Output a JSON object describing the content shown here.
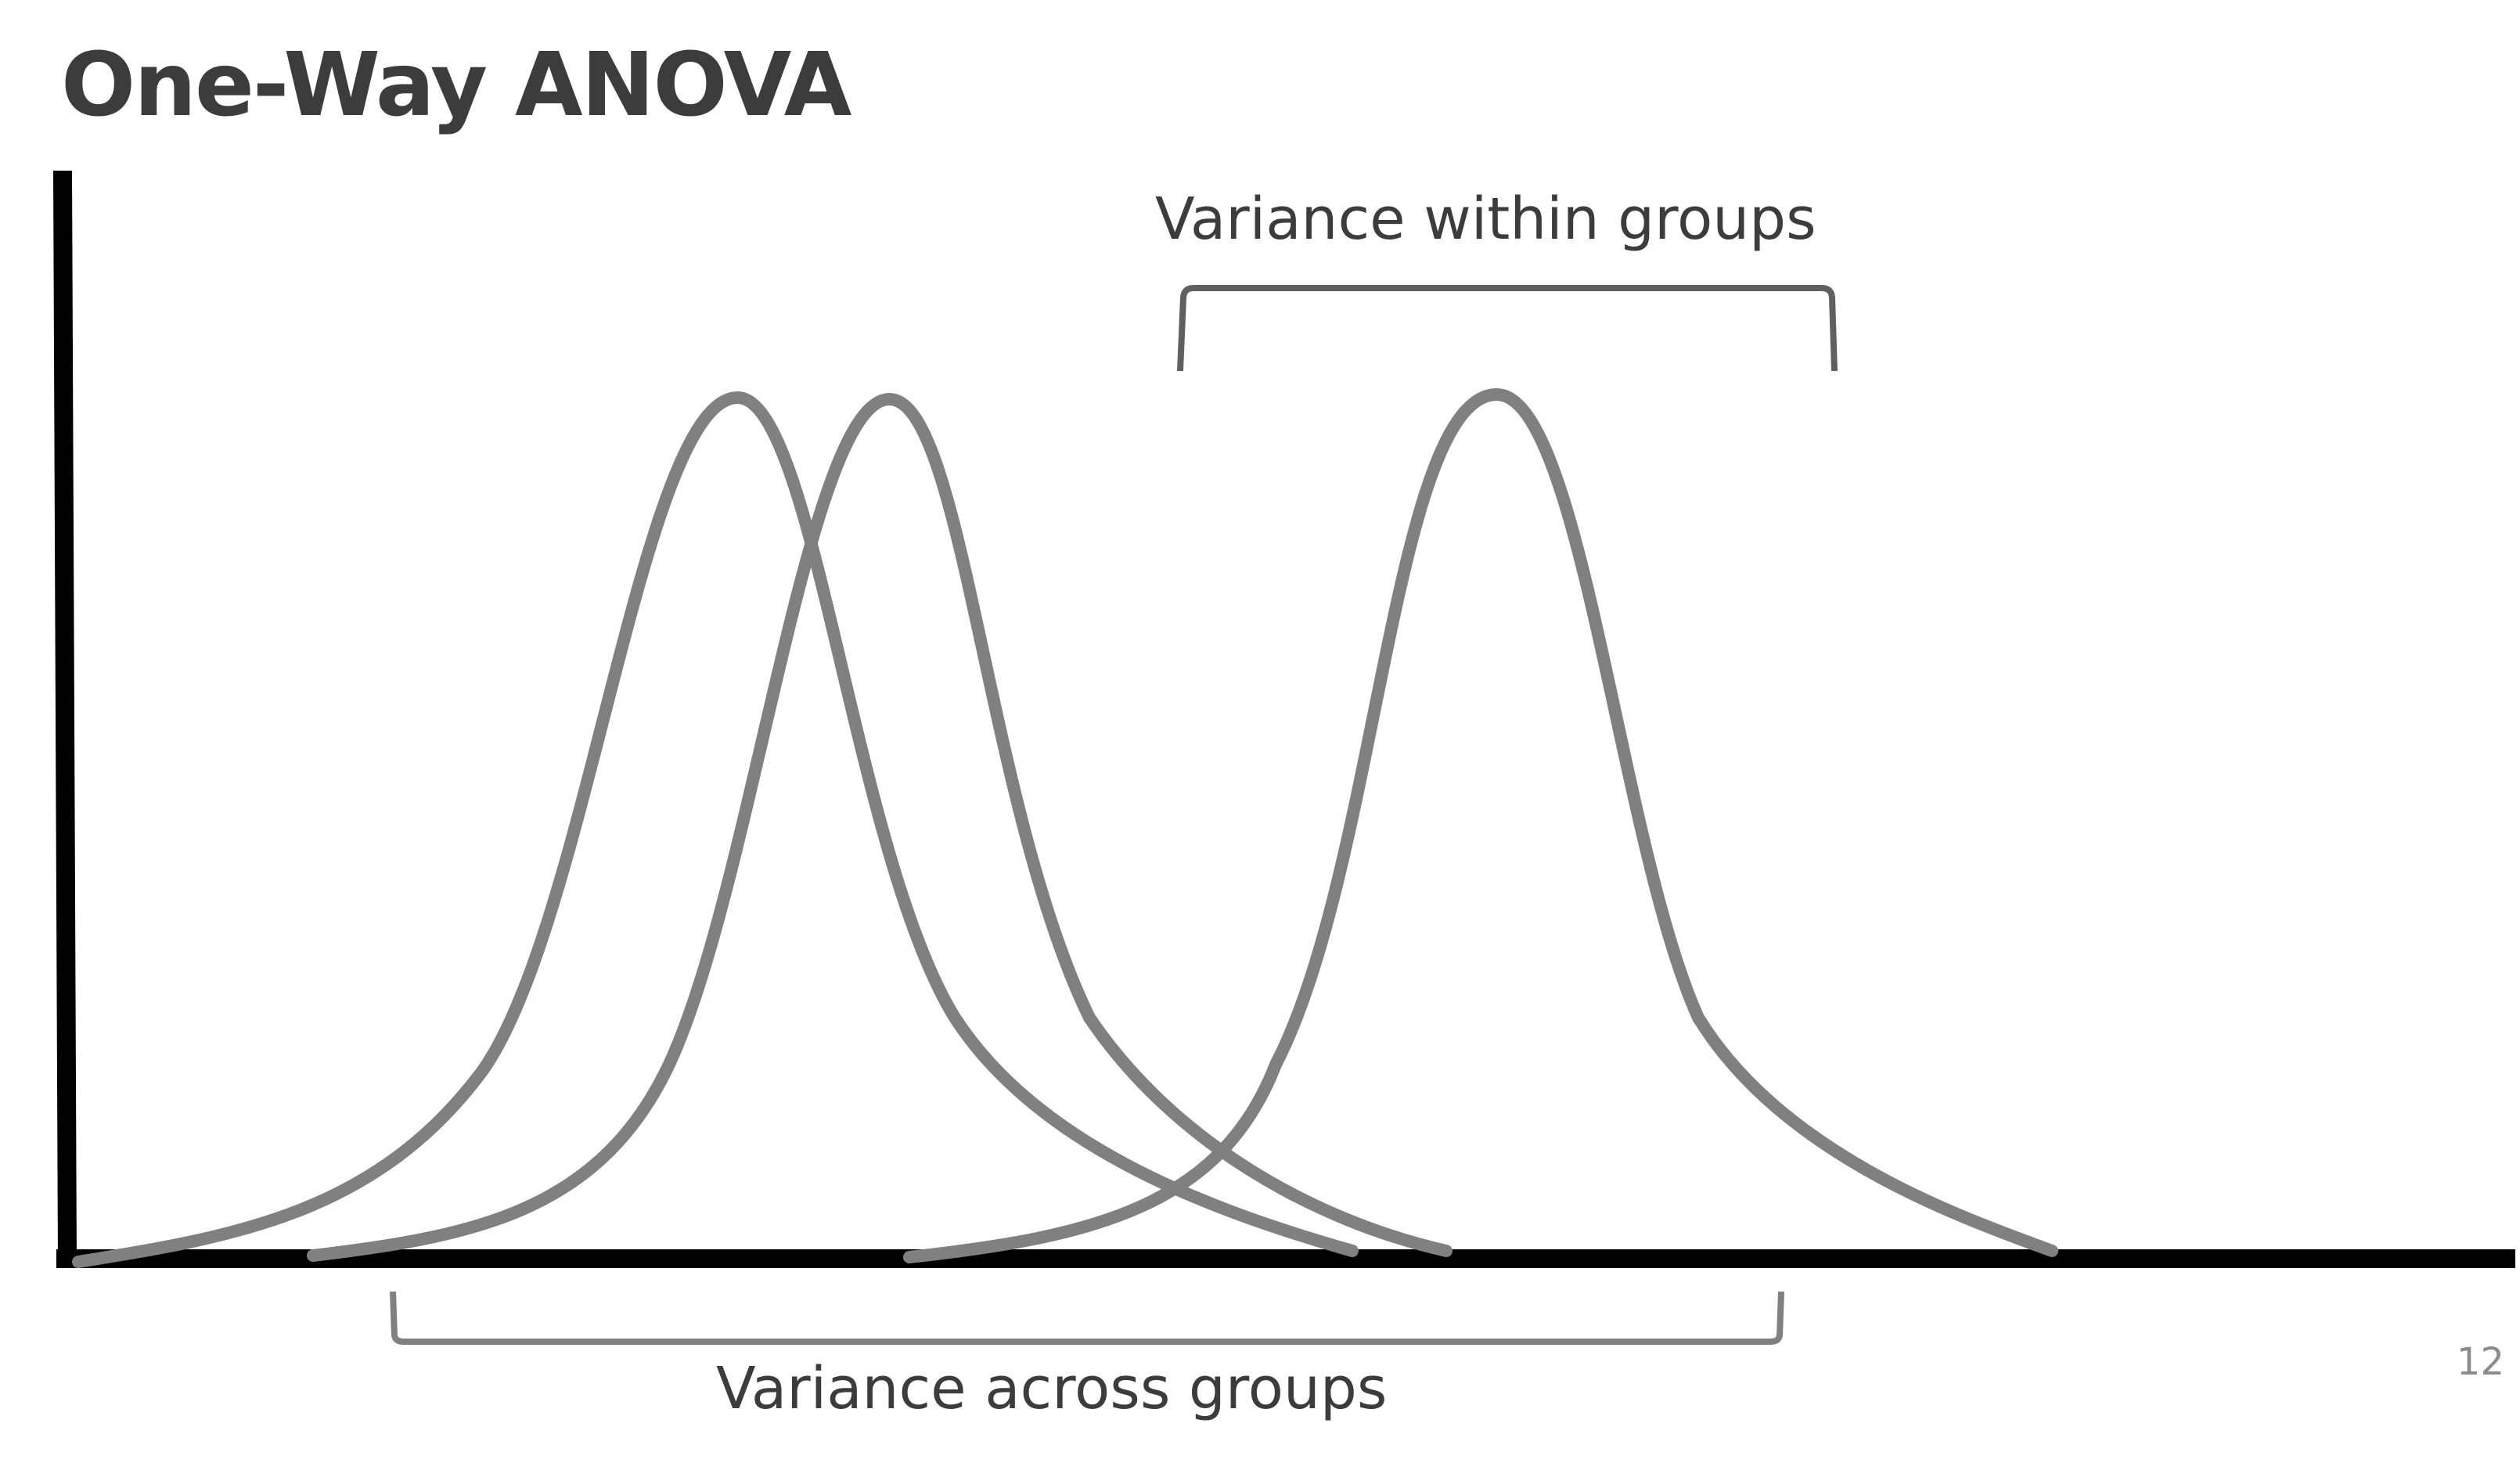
{
  "title": "One-Way ANOVA",
  "annotations": {
    "within": "Variance within groups",
    "across": "Variance across groups"
  },
  "slide_number": "12",
  "colors": {
    "title": "#3c3c3c",
    "text": "#3c3c3c",
    "axis": "#000000",
    "curve": "#808080",
    "bracket": "#606060",
    "slide_number": "#8c8c8c"
  },
  "icons": {
    "bracket_top": "bracket-shape",
    "bracket_bottom": "bracket-shape"
  }
}
